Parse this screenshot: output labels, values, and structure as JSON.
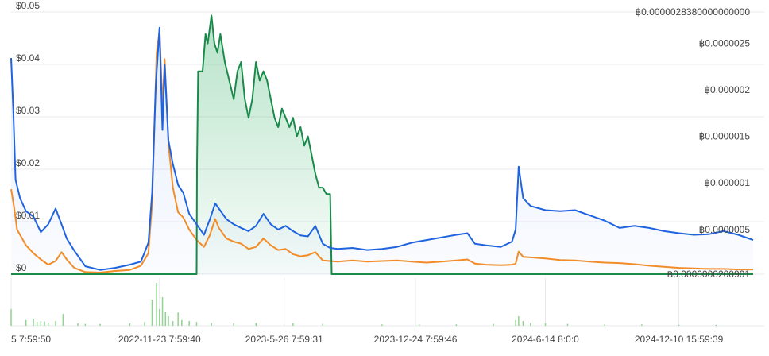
{
  "chart_data": {
    "type": "line",
    "x_ticks": [
      "5 7:59:50",
      "2022-11-23 7:59:40",
      "2023-5-26 7:59:31",
      "2023-12-24 7:59:46",
      "2024-6-14 8:0:0",
      "2024-12-10 15:59:39"
    ],
    "y_left": {
      "ticks": [
        "$0",
        "$0.01",
        "$0.02",
        "$0.03",
        "$0.04",
        "$0.05"
      ],
      "range": [
        0,
        0.05
      ],
      "unit": "$"
    },
    "y_right": {
      "ticks": [
        "฿0.0000000200901",
        "฿0.0000005",
        "฿0.000001",
        "฿0.0000015",
        "฿0.000002",
        "฿0.0000025",
        "฿0.0000028380000000000"
      ],
      "range": [
        2.00901e-08,
        2.838e-06
      ],
      "unit": "฿"
    },
    "grid": true,
    "legend": "none",
    "colors": {
      "blue_series": "#1f63e0",
      "orange_series": "#f28c28",
      "green_series": "#1a8a4a",
      "green_fill": "#2fae62",
      "volume_bars": "#8fd48f",
      "grid": "#e8e8ee",
      "tick_text": "#444444"
    },
    "series": [
      {
        "axis": "left",
        "color": "#1f63e0",
        "points": [
          [
            0,
            0.0412
          ],
          [
            0.003,
            0.031
          ],
          [
            0.006,
            0.018
          ],
          [
            0.012,
            0.0145
          ],
          [
            0.02,
            0.012
          ],
          [
            0.03,
            0.011
          ],
          [
            0.04,
            0.008
          ],
          [
            0.05,
            0.0095
          ],
          [
            0.06,
            0.0125
          ],
          [
            0.068,
            0.0095
          ],
          [
            0.075,
            0.0068
          ],
          [
            0.085,
            0.0045
          ],
          [
            0.1,
            0.0015
          ],
          [
            0.12,
            0.0008
          ],
          [
            0.14,
            0.0012
          ],
          [
            0.16,
            0.0018
          ],
          [
            0.175,
            0.0024
          ],
          [
            0.185,
            0.006
          ],
          [
            0.19,
            0.0155
          ],
          [
            0.195,
            0.036
          ],
          [
            0.2,
            0.047
          ],
          [
            0.204,
            0.0275
          ],
          [
            0.207,
            0.04
          ],
          [
            0.212,
            0.0255
          ],
          [
            0.218,
            0.021
          ],
          [
            0.225,
            0.017
          ],
          [
            0.232,
            0.0155
          ],
          [
            0.24,
            0.0115
          ],
          [
            0.25,
            0.0095
          ],
          [
            0.26,
            0.0075
          ],
          [
            0.268,
            0.0105
          ],
          [
            0.275,
            0.0135
          ],
          [
            0.28,
            0.0125
          ],
          [
            0.29,
            0.0105
          ],
          [
            0.3,
            0.0095
          ],
          [
            0.31,
            0.0088
          ],
          [
            0.32,
            0.0082
          ],
          [
            0.33,
            0.0092
          ],
          [
            0.34,
            0.0115
          ],
          [
            0.35,
            0.0095
          ],
          [
            0.36,
            0.0085
          ],
          [
            0.37,
            0.0092
          ],
          [
            0.38,
            0.0082
          ],
          [
            0.39,
            0.0074
          ],
          [
            0.4,
            0.0072
          ],
          [
            0.41,
            0.0092
          ],
          [
            0.42,
            0.0058
          ],
          [
            0.43,
            0.005
          ],
          [
            0.44,
            0.0048
          ],
          [
            0.46,
            0.005
          ],
          [
            0.48,
            0.0046
          ],
          [
            0.5,
            0.0048
          ],
          [
            0.52,
            0.0052
          ],
          [
            0.54,
            0.006
          ],
          [
            0.56,
            0.0065
          ],
          [
            0.58,
            0.007
          ],
          [
            0.6,
            0.0075
          ],
          [
            0.615,
            0.0078
          ],
          [
            0.625,
            0.0058
          ],
          [
            0.64,
            0.0055
          ],
          [
            0.66,
            0.0052
          ],
          [
            0.675,
            0.0062
          ],
          [
            0.68,
            0.0085
          ],
          [
            0.684,
            0.0205
          ],
          [
            0.69,
            0.0145
          ],
          [
            0.7,
            0.013
          ],
          [
            0.72,
            0.0122
          ],
          [
            0.74,
            0.012
          ],
          [
            0.76,
            0.0122
          ],
          [
            0.78,
            0.0112
          ],
          [
            0.8,
            0.0102
          ],
          [
            0.82,
            0.0088
          ],
          [
            0.84,
            0.0092
          ],
          [
            0.86,
            0.0088
          ],
          [
            0.88,
            0.0082
          ],
          [
            0.9,
            0.0078
          ],
          [
            0.92,
            0.0075
          ],
          [
            0.94,
            0.0076
          ],
          [
            0.96,
            0.0082
          ],
          [
            0.98,
            0.0075
          ],
          [
            1.0,
            0.0065
          ]
        ]
      },
      {
        "axis": "left",
        "color": "#f28c28",
        "points": [
          [
            0,
            0.0162
          ],
          [
            0.004,
            0.0128
          ],
          [
            0.008,
            0.0085
          ],
          [
            0.012,
            0.0075
          ],
          [
            0.02,
            0.0055
          ],
          [
            0.03,
            0.004
          ],
          [
            0.04,
            0.0028
          ],
          [
            0.05,
            0.0018
          ],
          [
            0.06,
            0.0025
          ],
          [
            0.068,
            0.0042
          ],
          [
            0.075,
            0.0028
          ],
          [
            0.085,
            0.0012
          ],
          [
            0.1,
            0.0004
          ],
          [
            0.12,
            0.0003
          ],
          [
            0.14,
            0.0006
          ],
          [
            0.16,
            0.0008
          ],
          [
            0.175,
            0.0016
          ],
          [
            0.185,
            0.004
          ],
          [
            0.19,
            0.0135
          ],
          [
            0.196,
            0.042
          ],
          [
            0.2,
            0.0465
          ],
          [
            0.204,
            0.032
          ],
          [
            0.207,
            0.041
          ],
          [
            0.212,
            0.025
          ],
          [
            0.218,
            0.0165
          ],
          [
            0.225,
            0.0118
          ],
          [
            0.232,
            0.0108
          ],
          [
            0.24,
            0.0085
          ],
          [
            0.25,
            0.0065
          ],
          [
            0.26,
            0.0052
          ],
          [
            0.268,
            0.0075
          ],
          [
            0.275,
            0.0105
          ],
          [
            0.28,
            0.0088
          ],
          [
            0.29,
            0.0068
          ],
          [
            0.3,
            0.0062
          ],
          [
            0.31,
            0.0058
          ],
          [
            0.32,
            0.0048
          ],
          [
            0.33,
            0.0052
          ],
          [
            0.34,
            0.0068
          ],
          [
            0.35,
            0.0055
          ],
          [
            0.36,
            0.0046
          ],
          [
            0.37,
            0.0048
          ],
          [
            0.38,
            0.0038
          ],
          [
            0.39,
            0.0034
          ],
          [
            0.4,
            0.0036
          ],
          [
            0.41,
            0.0042
          ],
          [
            0.42,
            0.0026
          ],
          [
            0.44,
            0.0024
          ],
          [
            0.46,
            0.0026
          ],
          [
            0.48,
            0.0024
          ],
          [
            0.5,
            0.0025
          ],
          [
            0.52,
            0.0026
          ],
          [
            0.54,
            0.0024
          ],
          [
            0.56,
            0.0022
          ],
          [
            0.58,
            0.0024
          ],
          [
            0.6,
            0.0026
          ],
          [
            0.615,
            0.0028
          ],
          [
            0.625,
            0.002
          ],
          [
            0.64,
            0.0018
          ],
          [
            0.66,
            0.0017
          ],
          [
            0.675,
            0.0018
          ],
          [
            0.68,
            0.002
          ],
          [
            0.684,
            0.0043
          ],
          [
            0.69,
            0.0033
          ],
          [
            0.7,
            0.0032
          ],
          [
            0.72,
            0.003
          ],
          [
            0.74,
            0.0027
          ],
          [
            0.76,
            0.0026
          ],
          [
            0.78,
            0.0024
          ],
          [
            0.8,
            0.0022
          ],
          [
            0.82,
            0.0021
          ],
          [
            0.84,
            0.0019
          ],
          [
            0.86,
            0.0016
          ],
          [
            0.88,
            0.0014
          ],
          [
            0.9,
            0.0012
          ],
          [
            0.92,
            0.0011
          ],
          [
            0.94,
            0.001
          ],
          [
            0.96,
            0.001
          ],
          [
            0.98,
            0.0009
          ],
          [
            1.0,
            0.0009
          ]
        ]
      },
      {
        "axis": "right",
        "color": "#1a8a4a",
        "points": [
          [
            0,
            2.00901e-08
          ],
          [
            0.25,
            2.00901e-08
          ],
          [
            0.2505,
            1.2e-06
          ],
          [
            0.252,
            2.2e-06
          ],
          [
            0.258,
            2.2e-06
          ],
          [
            0.262,
            2.6e-06
          ],
          [
            0.265,
            2.5e-06
          ],
          [
            0.27,
            2.8e-06
          ],
          [
            0.274,
            2.5e-06
          ],
          [
            0.278,
            2.4e-06
          ],
          [
            0.282,
            2.6e-06
          ],
          [
            0.288,
            2.3e-06
          ],
          [
            0.294,
            2.1e-06
          ],
          [
            0.3,
            1.9e-06
          ],
          [
            0.305,
            2.2e-06
          ],
          [
            0.31,
            2.3e-06
          ],
          [
            0.315,
            1.9e-06
          ],
          [
            0.32,
            1.7e-06
          ],
          [
            0.325,
            1.9e-06
          ],
          [
            0.33,
            2.3e-06
          ],
          [
            0.335,
            2.1e-06
          ],
          [
            0.34,
            2.2e-06
          ],
          [
            0.345,
            2.1e-06
          ],
          [
            0.35,
            1.9e-06
          ],
          [
            0.355,
            1.7e-06
          ],
          [
            0.36,
            1.6e-06
          ],
          [
            0.365,
            1.8e-06
          ],
          [
            0.37,
            1.7e-06
          ],
          [
            0.375,
            1.6e-06
          ],
          [
            0.38,
            1.7e-06
          ],
          [
            0.385,
            1.5e-06
          ],
          [
            0.39,
            1.6e-06
          ],
          [
            0.395,
            1.4e-06
          ],
          [
            0.4,
            1.5e-06
          ],
          [
            0.405,
            1.3e-06
          ],
          [
            0.41,
            1.1e-06
          ],
          [
            0.415,
            9.5e-07
          ],
          [
            0.42,
            9.5e-07
          ],
          [
            0.425,
            8.8e-07
          ],
          [
            0.43,
            8.8e-07
          ],
          [
            0.432,
            2.00901e-08
          ],
          [
            1.0,
            2.00901e-08
          ]
        ]
      }
    ],
    "volume_bars": [
      [
        0.0,
        0.35
      ],
      [
        0.02,
        0.12
      ],
      [
        0.03,
        0.15
      ],
      [
        0.035,
        0.08
      ],
      [
        0.04,
        0.1
      ],
      [
        0.045,
        0.09
      ],
      [
        0.05,
        0.06
      ],
      [
        0.06,
        0.1
      ],
      [
        0.07,
        0.25
      ],
      [
        0.09,
        0.05
      ],
      [
        0.1,
        0.04
      ],
      [
        0.12,
        0.04
      ],
      [
        0.16,
        0.05
      ],
      [
        0.18,
        0.08
      ],
      [
        0.19,
        0.55
      ],
      [
        0.196,
        0.9
      ],
      [
        0.2,
        0.35
      ],
      [
        0.204,
        0.6
      ],
      [
        0.208,
        0.3
      ],
      [
        0.212,
        0.2
      ],
      [
        0.218,
        0.1
      ],
      [
        0.225,
        0.28
      ],
      [
        0.23,
        0.12
      ],
      [
        0.24,
        0.1
      ],
      [
        0.25,
        0.08
      ],
      [
        0.27,
        0.06
      ],
      [
        0.3,
        0.05
      ],
      [
        0.33,
        0.06
      ],
      [
        0.38,
        0.05
      ],
      [
        0.42,
        0.04
      ],
      [
        0.5,
        0.03
      ],
      [
        0.55,
        0.03
      ],
      [
        0.6,
        0.03
      ],
      [
        0.65,
        0.04
      ],
      [
        0.68,
        0.12
      ],
      [
        0.684,
        0.2
      ],
      [
        0.69,
        0.1
      ],
      [
        0.7,
        0.06
      ],
      [
        0.72,
        0.05
      ],
      [
        0.75,
        0.04
      ],
      [
        0.8,
        0.03
      ],
      [
        0.85,
        0.03
      ],
      [
        0.9,
        0.02
      ],
      [
        0.95,
        0.02
      ]
    ]
  }
}
